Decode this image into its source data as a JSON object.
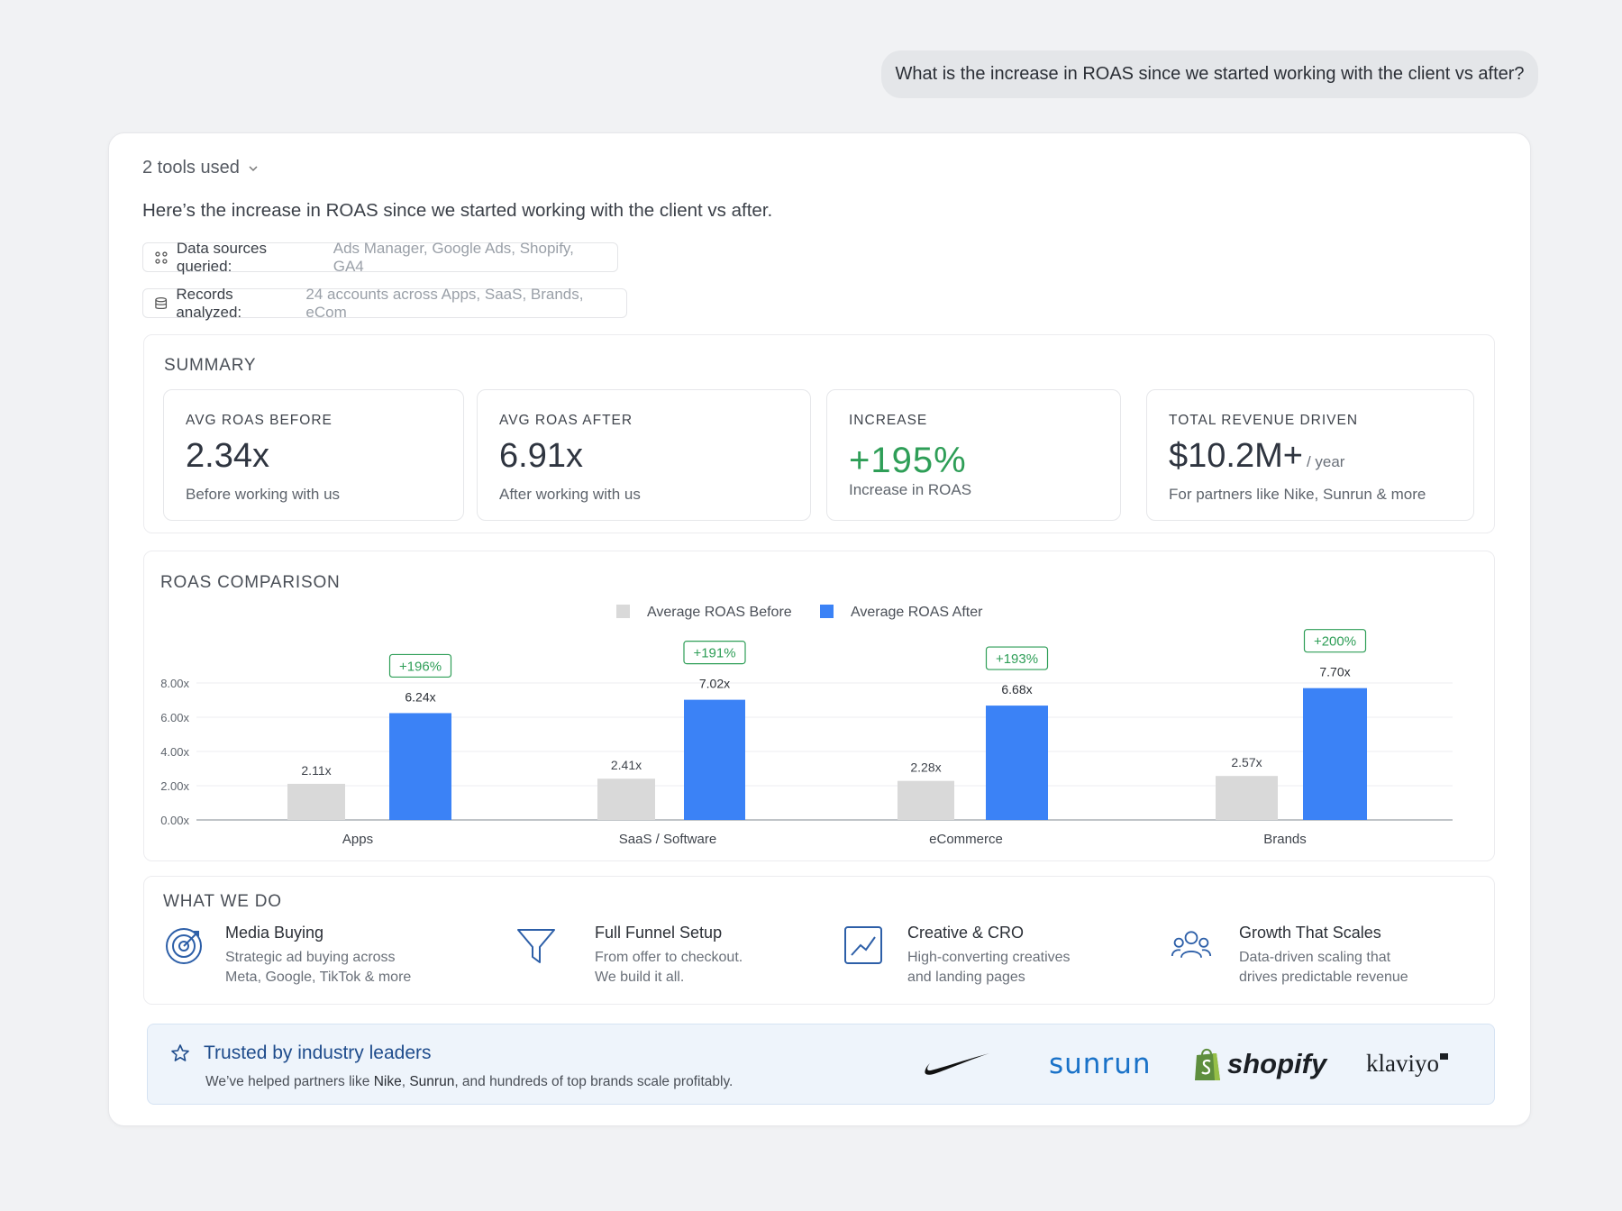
{
  "user_message": "What is the increase in ROAS since we started working with the client vs after?",
  "response": {
    "tools_used_label": "2 tools used",
    "intro": "Here’s the increase in ROAS since we started working with the client vs after.",
    "data_sources": {
      "label": "Data sources queried:",
      "value": "Ads Manager, Google Ads, Shopify, GA4"
    },
    "records": {
      "label": "Records analyzed:",
      "value": "24 accounts across Apps, SaaS, Brands, eCom"
    }
  },
  "summary": {
    "title": "SUMMARY",
    "stats": [
      {
        "label": "AVG ROAS BEFORE",
        "value": "2.34x",
        "unit": "",
        "sub": "Before working with us"
      },
      {
        "label": "AVG ROAS AFTER",
        "value": "6.91x",
        "unit": "",
        "sub": "After working with us"
      },
      {
        "label": "INCREASE",
        "value": "+195%",
        "unit": "",
        "sub": "Increase in ROAS"
      },
      {
        "label": "TOTAL REVENUE DRIVEN",
        "value": "$10.2M+",
        "unit": "/ year",
        "sub": "For partners like Nike, Sunrun & more"
      }
    ]
  },
  "chart_title": "ROAS COMPARISON",
  "chart_data": {
    "type": "bar",
    "categories": [
      "Apps",
      "SaaS / Software",
      "eCommerce",
      "Brands"
    ],
    "series": [
      {
        "name": "Average ROAS Before",
        "values": [
          2.11,
          2.41,
          2.28,
          2.57
        ],
        "labels": [
          "2.11x",
          "2.41x",
          "2.28x",
          "2.57x"
        ],
        "color": "#d9d9d9"
      },
      {
        "name": "Average ROAS After",
        "values": [
          6.24,
          7.02,
          6.68,
          7.7
        ],
        "labels": [
          "6.24x",
          "7.02x",
          "6.68x",
          "7.70x"
        ],
        "color": "#3b82f6"
      }
    ],
    "increase_labels": [
      "+196%",
      "+191%",
      "+193%",
      "+200%"
    ],
    "y_ticks": [
      "0.00x",
      "2.00x",
      "4.00x",
      "6.00x",
      "8.00x"
    ],
    "ylim": [
      0,
      8
    ],
    "grid": true,
    "legend_position": "top-center",
    "increase_color": "#2e9e57"
  },
  "what_we_do": {
    "title": "WHAT WE DO",
    "items": [
      {
        "icon": "target-icon",
        "title": "Media Buying",
        "line1": "Strategic ad buying across",
        "line2": "Meta, Google, TikTok & more"
      },
      {
        "icon": "funnel-icon",
        "title": "Full Funnel Setup",
        "line1": "From offer to checkout.",
        "line2": "We build it all."
      },
      {
        "icon": "chart-line-icon",
        "title": "Creative & CRO",
        "line1": "High-converting creatives",
        "line2": "and landing pages"
      },
      {
        "icon": "users-icon",
        "title": "Growth That Scales",
        "line1": "Data-driven scaling that",
        "line2": "drives predictable revenue"
      }
    ]
  },
  "trusted": {
    "title": "Trusted by industry leaders",
    "desc_before": "We’ve helped partners like ",
    "brand1": "Nike",
    "sep1": ", ",
    "brand2": "Sunrun",
    "desc_after": ", and hundreds of top brands scale profitably.",
    "logos": [
      "nike",
      "sunrun",
      "shopify",
      "klaviyo"
    ],
    "logo_text": {
      "sunrun": "sunrun",
      "shopify": "shopify",
      "klaviyo": "klaviyo"
    }
  },
  "colors": {
    "accent_blue": "#3b82f6",
    "green": "#2e9e57",
    "trusted_title": "#1f4c8c"
  }
}
